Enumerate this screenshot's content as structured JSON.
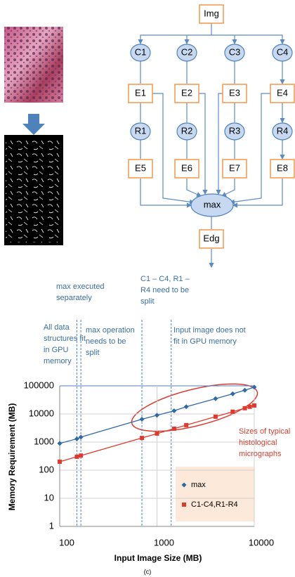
{
  "diagram": {
    "nodes": [
      "Img",
      "C1",
      "C2",
      "C3",
      "C4",
      "E1",
      "E2",
      "E3",
      "E4",
      "R1",
      "R2",
      "R3",
      "R4",
      "E5",
      "E6",
      "E7",
      "E8",
      "max",
      "Edg"
    ]
  },
  "chart_data": {
    "type": "line",
    "log_x": true,
    "log_y": true,
    "grid": true,
    "x_label": "Input Image Size (MB)",
    "y_label": "Memory Requirement (MB)",
    "xlim": [
      100,
      10000
    ],
    "xticks": [
      100,
      1000,
      10000
    ],
    "ylim": [
      1,
      100000
    ],
    "yticks": [
      1,
      10,
      100,
      1000,
      10000,
      100000
    ],
    "series": [
      {
        "name": "max",
        "color": "#2f6aa8",
        "marker": "diamond",
        "x": [
          100,
          150,
          165,
          700,
          1000,
          1500,
          2000,
          4000,
          6000,
          8000,
          10000
        ],
        "values": [
          900,
          1300,
          1500,
          6500,
          9000,
          13000,
          18000,
          35000,
          52000,
          70000,
          90000
        ]
      },
      {
        "name": "C1-C4,R1-R4",
        "color": "#e03a2e",
        "marker": "square",
        "x": [
          100,
          150,
          165,
          700,
          1000,
          1500,
          2000,
          4000,
          6000,
          8000,
          9000,
          10000
        ],
        "values": [
          200,
          300,
          330,
          1400,
          2000,
          3000,
          4000,
          8000,
          12000,
          16000,
          18000,
          20000
        ]
      }
    ],
    "vlines": [
      150,
      165,
      700,
      1400
    ],
    "annotations": [
      {
        "lines": [
          "max executed",
          "separately"
        ],
        "color": "#3b6fa3"
      },
      {
        "lines": [
          "C1 – C4, R1 –",
          "R4 need to be",
          "split"
        ],
        "color": "#3b6fa3"
      },
      {
        "lines": [
          "All data",
          "structures fit",
          "in GPU",
          "memory"
        ],
        "color": "#3b6fa3"
      },
      {
        "lines": [
          "max operation",
          "needs to be",
          "split"
        ],
        "color": "#3b6fa3"
      },
      {
        "lines": [
          "Input image does not",
          "fit in GPU memory"
        ],
        "color": "#3b6fa3"
      },
      {
        "lines": [
          "Sizes of typical",
          "histological",
          "micrographs"
        ],
        "color": "#e03a2e"
      }
    ]
  },
  "caption": "(c)"
}
